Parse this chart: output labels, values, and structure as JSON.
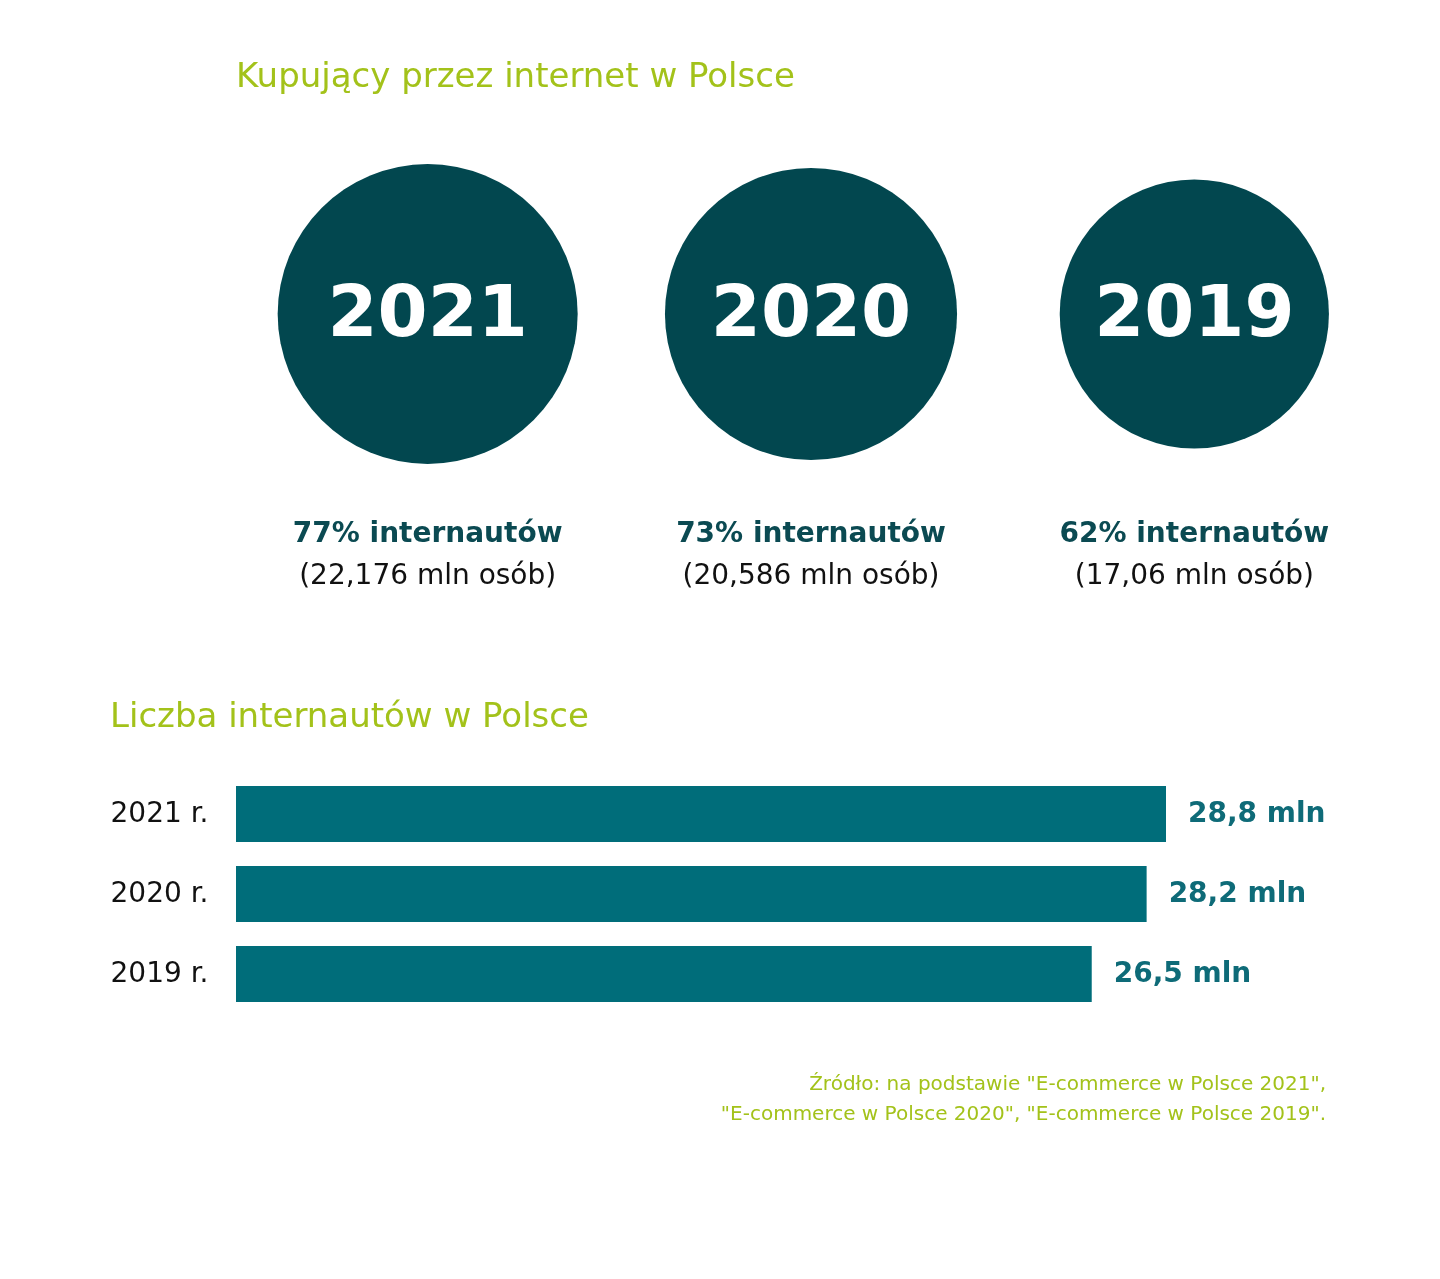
{
  "chart_data": [
    {
      "type": "other",
      "title": "Kupujący przez internet w Polsce",
      "categories": [
        "2021",
        "2020",
        "2019"
      ],
      "values": [
        77,
        73,
        62
      ],
      "color": "#02474f",
      "value_labels": [
        "77% internautów",
        "73% internautów",
        "62% internautów"
      ],
      "annotations": [
        "(22,176 mln osób)",
        "(20,586 mln osób)",
        "(17,06 mln osób)"
      ]
    },
    {
      "type": "bar",
      "orientation": "horizontal",
      "title": "Liczba internautów w Polsce",
      "categories": [
        "2021 r.",
        "2020 r.",
        "2019 r."
      ],
      "values": [
        28.8,
        28.2,
        26.5
      ],
      "color": "#006d7a",
      "value_labels": [
        "28,8 mln",
        "28,2 mln",
        "26,5 mln"
      ],
      "annotations": [
        "Źródło: na podstawie  \"E-commerce w Polsce 2021\",\n\"E-commerce w Polsce 2020\", \"E-commerce w Polsce 2019\"."
      ]
    }
  ]
}
